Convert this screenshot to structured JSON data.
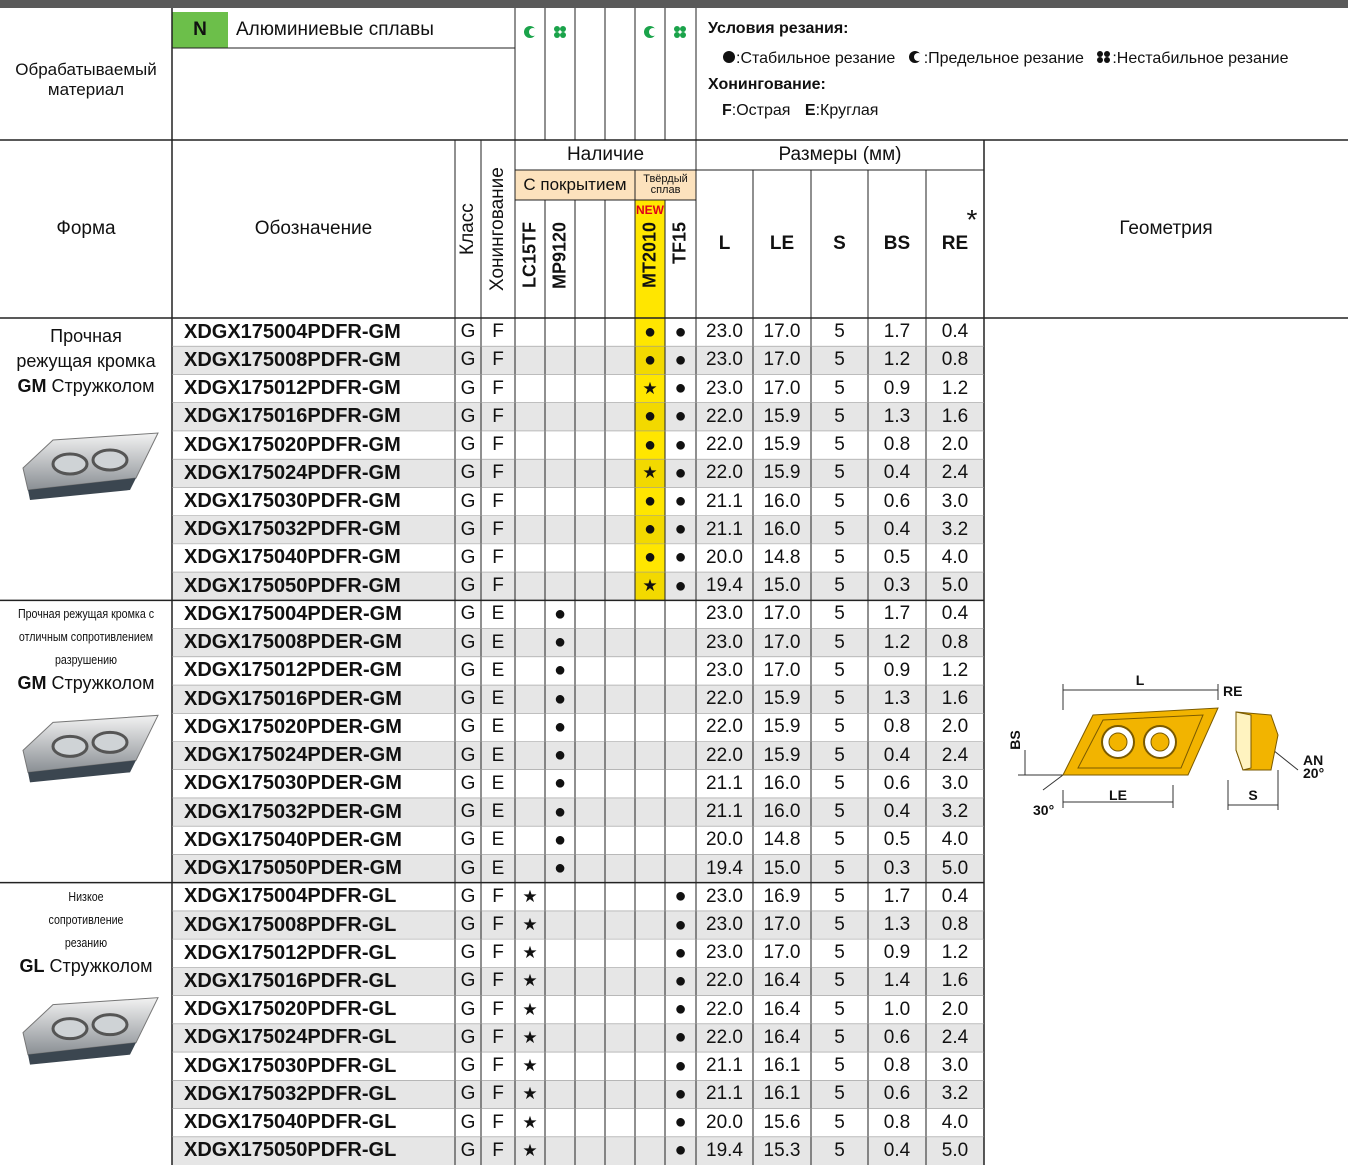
{
  "header": {
    "material_label": "Обрабатываемый материал",
    "material_code": "N",
    "material_name": "Алюминиевые сплавы",
    "conditions_title": "Условия резания:",
    "conditions": [
      ":Стабильное резание",
      ":Предельное резание",
      ":Нестабильное резание"
    ],
    "honing_title": "Хонингование:",
    "honing": [
      {
        "key": "F",
        "text": ":Острая"
      },
      {
        "key": "E",
        "text": ":Круглая"
      }
    ]
  },
  "table": {
    "columns": {
      "form": "Форма",
      "designation": "Обозначение",
      "class": "Класс",
      "honing": "Хонингование",
      "availability": "Наличие",
      "coated": "С покрытием",
      "carbide": "Твёрдый сплав",
      "new": "NEW",
      "grades": [
        "LC15TF",
        "MP9120",
        "MT2010",
        "TF15"
      ],
      "dimensions": "Размеры (мм)",
      "dims": [
        "L",
        "LE",
        "S",
        "BS",
        "RE"
      ],
      "re_note": "*",
      "geometry": "Геометрия"
    },
    "groups": [
      {
        "description": [
          "Прочная",
          "режущая кромка"
        ],
        "chipbreaker": {
          "code": "GM",
          "text": "Стружколом"
        },
        "rows": [
          [
            "XDGX175004PDFR-GM",
            "G",
            "F",
            null,
            null,
            "●",
            "●",
            "23.0",
            "17.0",
            "5",
            "1.7",
            "0.4"
          ],
          [
            "XDGX175008PDFR-GM",
            "G",
            "F",
            null,
            null,
            "●",
            "●",
            "23.0",
            "17.0",
            "5",
            "1.2",
            "0.8"
          ],
          [
            "XDGX175012PDFR-GM",
            "G",
            "F",
            null,
            null,
            "★",
            "●",
            "23.0",
            "17.0",
            "5",
            "0.9",
            "1.2"
          ],
          [
            "XDGX175016PDFR-GM",
            "G",
            "F",
            null,
            null,
            "●",
            "●",
            "22.0",
            "15.9",
            "5",
            "1.3",
            "1.6"
          ],
          [
            "XDGX175020PDFR-GM",
            "G",
            "F",
            null,
            null,
            "●",
            "●",
            "22.0",
            "15.9",
            "5",
            "0.8",
            "2.0"
          ],
          [
            "XDGX175024PDFR-GM",
            "G",
            "F",
            null,
            null,
            "★",
            "●",
            "22.0",
            "15.9",
            "5",
            "0.4",
            "2.4"
          ],
          [
            "XDGX175030PDFR-GM",
            "G",
            "F",
            null,
            null,
            "●",
            "●",
            "21.1",
            "16.0",
            "5",
            "0.6",
            "3.0"
          ],
          [
            "XDGX175032PDFR-GM",
            "G",
            "F",
            null,
            null,
            "●",
            "●",
            "21.1",
            "16.0",
            "5",
            "0.4",
            "3.2"
          ],
          [
            "XDGX175040PDFR-GM",
            "G",
            "F",
            null,
            null,
            "●",
            "●",
            "20.0",
            "14.8",
            "5",
            "0.5",
            "4.0"
          ],
          [
            "XDGX175050PDFR-GM",
            "G",
            "F",
            null,
            null,
            "★",
            "●",
            "19.4",
            "15.0",
            "5",
            "0.3",
            "5.0"
          ]
        ]
      },
      {
        "description": [
          "Прочная режущая кромка с",
          "отличным сопротивлением",
          "разрушению"
        ],
        "chipbreaker": {
          "code": "GM",
          "text": "Стружколом"
        },
        "rows": [
          [
            "XDGX175004PDER-GM",
            "G",
            "E",
            null,
            "●",
            null,
            null,
            "23.0",
            "17.0",
            "5",
            "1.7",
            "0.4"
          ],
          [
            "XDGX175008PDER-GM",
            "G",
            "E",
            null,
            "●",
            null,
            null,
            "23.0",
            "17.0",
            "5",
            "1.2",
            "0.8"
          ],
          [
            "XDGX175012PDER-GM",
            "G",
            "E",
            null,
            "●",
            null,
            null,
            "23.0",
            "17.0",
            "5",
            "0.9",
            "1.2"
          ],
          [
            "XDGX175016PDER-GM",
            "G",
            "E",
            null,
            "●",
            null,
            null,
            "22.0",
            "15.9",
            "5",
            "1.3",
            "1.6"
          ],
          [
            "XDGX175020PDER-GM",
            "G",
            "E",
            null,
            "●",
            null,
            null,
            "22.0",
            "15.9",
            "5",
            "0.8",
            "2.0"
          ],
          [
            "XDGX175024PDER-GM",
            "G",
            "E",
            null,
            "●",
            null,
            null,
            "22.0",
            "15.9",
            "5",
            "0.4",
            "2.4"
          ],
          [
            "XDGX175030PDER-GM",
            "G",
            "E",
            null,
            "●",
            null,
            null,
            "21.1",
            "16.0",
            "5",
            "0.6",
            "3.0"
          ],
          [
            "XDGX175032PDER-GM",
            "G",
            "E",
            null,
            "●",
            null,
            null,
            "21.1",
            "16.0",
            "5",
            "0.4",
            "3.2"
          ],
          [
            "XDGX175040PDER-GM",
            "G",
            "E",
            null,
            "●",
            null,
            null,
            "20.0",
            "14.8",
            "5",
            "0.5",
            "4.0"
          ],
          [
            "XDGX175050PDER-GM",
            "G",
            "E",
            null,
            "●",
            null,
            null,
            "19.4",
            "15.0",
            "5",
            "0.3",
            "5.0"
          ]
        ]
      },
      {
        "description": [
          "Низкое",
          "сопротивление",
          "резанию"
        ],
        "chipbreaker": {
          "code": "GL",
          "text": "Стружколом"
        },
        "rows": [
          [
            "XDGX175004PDFR-GL",
            "G",
            "F",
            "★",
            null,
            null,
            "●",
            "23.0",
            "16.9",
            "5",
            "1.7",
            "0.4"
          ],
          [
            "XDGX175008PDFR-GL",
            "G",
            "F",
            "★",
            null,
            null,
            "●",
            "23.0",
            "17.0",
            "5",
            "1.3",
            "0.8"
          ],
          [
            "XDGX175012PDFR-GL",
            "G",
            "F",
            "★",
            null,
            null,
            "●",
            "23.0",
            "17.0",
            "5",
            "0.9",
            "1.2"
          ],
          [
            "XDGX175016PDFR-GL",
            "G",
            "F",
            "★",
            null,
            null,
            "●",
            "22.0",
            "16.4",
            "5",
            "1.4",
            "1.6"
          ],
          [
            "XDGX175020PDFR-GL",
            "G",
            "F",
            "★",
            null,
            null,
            "●",
            "22.0",
            "16.4",
            "5",
            "1.0",
            "2.0"
          ],
          [
            "XDGX175024PDFR-GL",
            "G",
            "F",
            "★",
            null,
            null,
            "●",
            "22.0",
            "16.4",
            "5",
            "0.6",
            "2.4"
          ],
          [
            "XDGX175030PDFR-GL",
            "G",
            "F",
            "★",
            null,
            null,
            "●",
            "21.1",
            "16.1",
            "5",
            "0.8",
            "3.0"
          ],
          [
            "XDGX175032PDFR-GL",
            "G",
            "F",
            "★",
            null,
            null,
            "●",
            "21.1",
            "16.1",
            "5",
            "0.6",
            "3.2"
          ],
          [
            "XDGX175040PDFR-GL",
            "G",
            "F",
            "★",
            null,
            null,
            "●",
            "20.0",
            "15.6",
            "5",
            "0.8",
            "4.0"
          ],
          [
            "XDGX175050PDFR-GL",
            "G",
            "F",
            "★",
            null,
            null,
            "●",
            "19.4",
            "15.3",
            "5",
            "0.4",
            "5.0"
          ]
        ]
      }
    ]
  },
  "geometry_labels": {
    "L": "L",
    "RE": "RE",
    "BS": "BS",
    "AN": "AN",
    "AN_angle": "20°",
    "LE": "LE",
    "S": "S",
    "angle": "30°"
  }
}
